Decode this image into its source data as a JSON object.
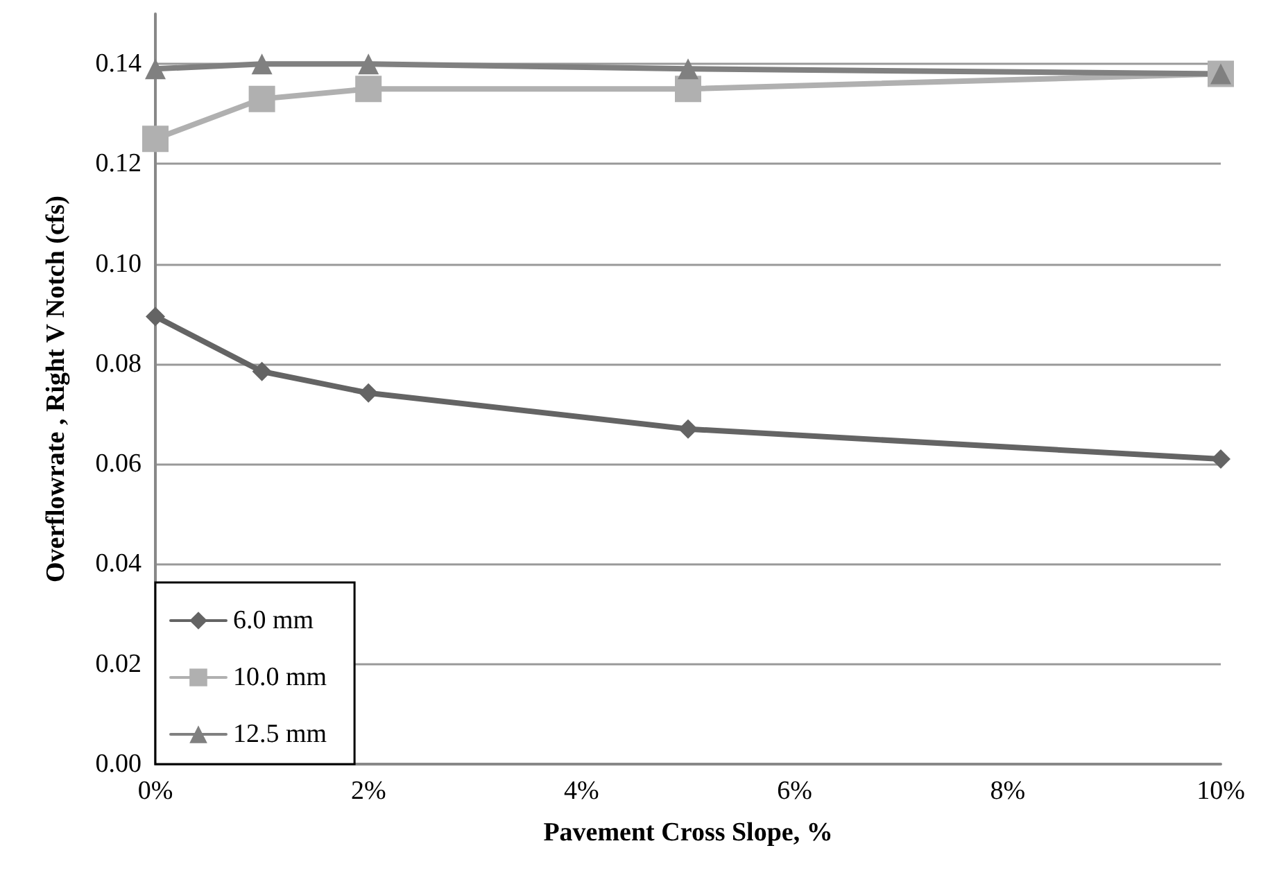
{
  "chart_data": {
    "type": "line",
    "xlabel": "Pavement Cross Slope, %",
    "ylabel": "Overflowrate , Right V Notch (cfs)",
    "x": [
      0,
      1,
      2,
      5,
      10
    ],
    "series": [
      {
        "name": "6.0 mm",
        "color": "#646464",
        "marker": "diamond",
        "values": [
          0.0895,
          0.0785,
          0.0742,
          0.067,
          0.061
        ]
      },
      {
        "name": "10.0 mm",
        "color": "#b0b0b0",
        "marker": "square",
        "values": [
          0.125,
          0.133,
          0.135,
          0.135,
          0.138
        ]
      },
      {
        "name": "12.5 mm",
        "color": "#808080",
        "marker": "triangle",
        "values": [
          0.139,
          0.14,
          0.14,
          0.139,
          0.138
        ]
      }
    ],
    "xlim": [
      0,
      10
    ],
    "xticks": [
      {
        "value": 0,
        "label": "0%"
      },
      {
        "value": 2,
        "label": "2%"
      },
      {
        "value": 4,
        "label": "4%"
      },
      {
        "value": 6,
        "label": "6%"
      },
      {
        "value": 8,
        "label": "8%"
      },
      {
        "value": 10,
        "label": "10%"
      }
    ],
    "ylim": [
      0,
      0.15
    ],
    "yticks": [
      {
        "value": 0,
        "label": "0.00"
      },
      {
        "value": 0.02,
        "label": "0.02"
      },
      {
        "value": 0.04,
        "label": "0.04"
      },
      {
        "value": 0.06,
        "label": "0.06"
      },
      {
        "value": 0.08,
        "label": "0.08"
      },
      {
        "value": 0.1,
        "label": "0.10"
      },
      {
        "value": 0.12,
        "label": "0.12"
      },
      {
        "value": 0.14,
        "label": "0.14"
      }
    ],
    "grid": "y",
    "legend": "bottom left",
    "line_style": "solid"
  }
}
